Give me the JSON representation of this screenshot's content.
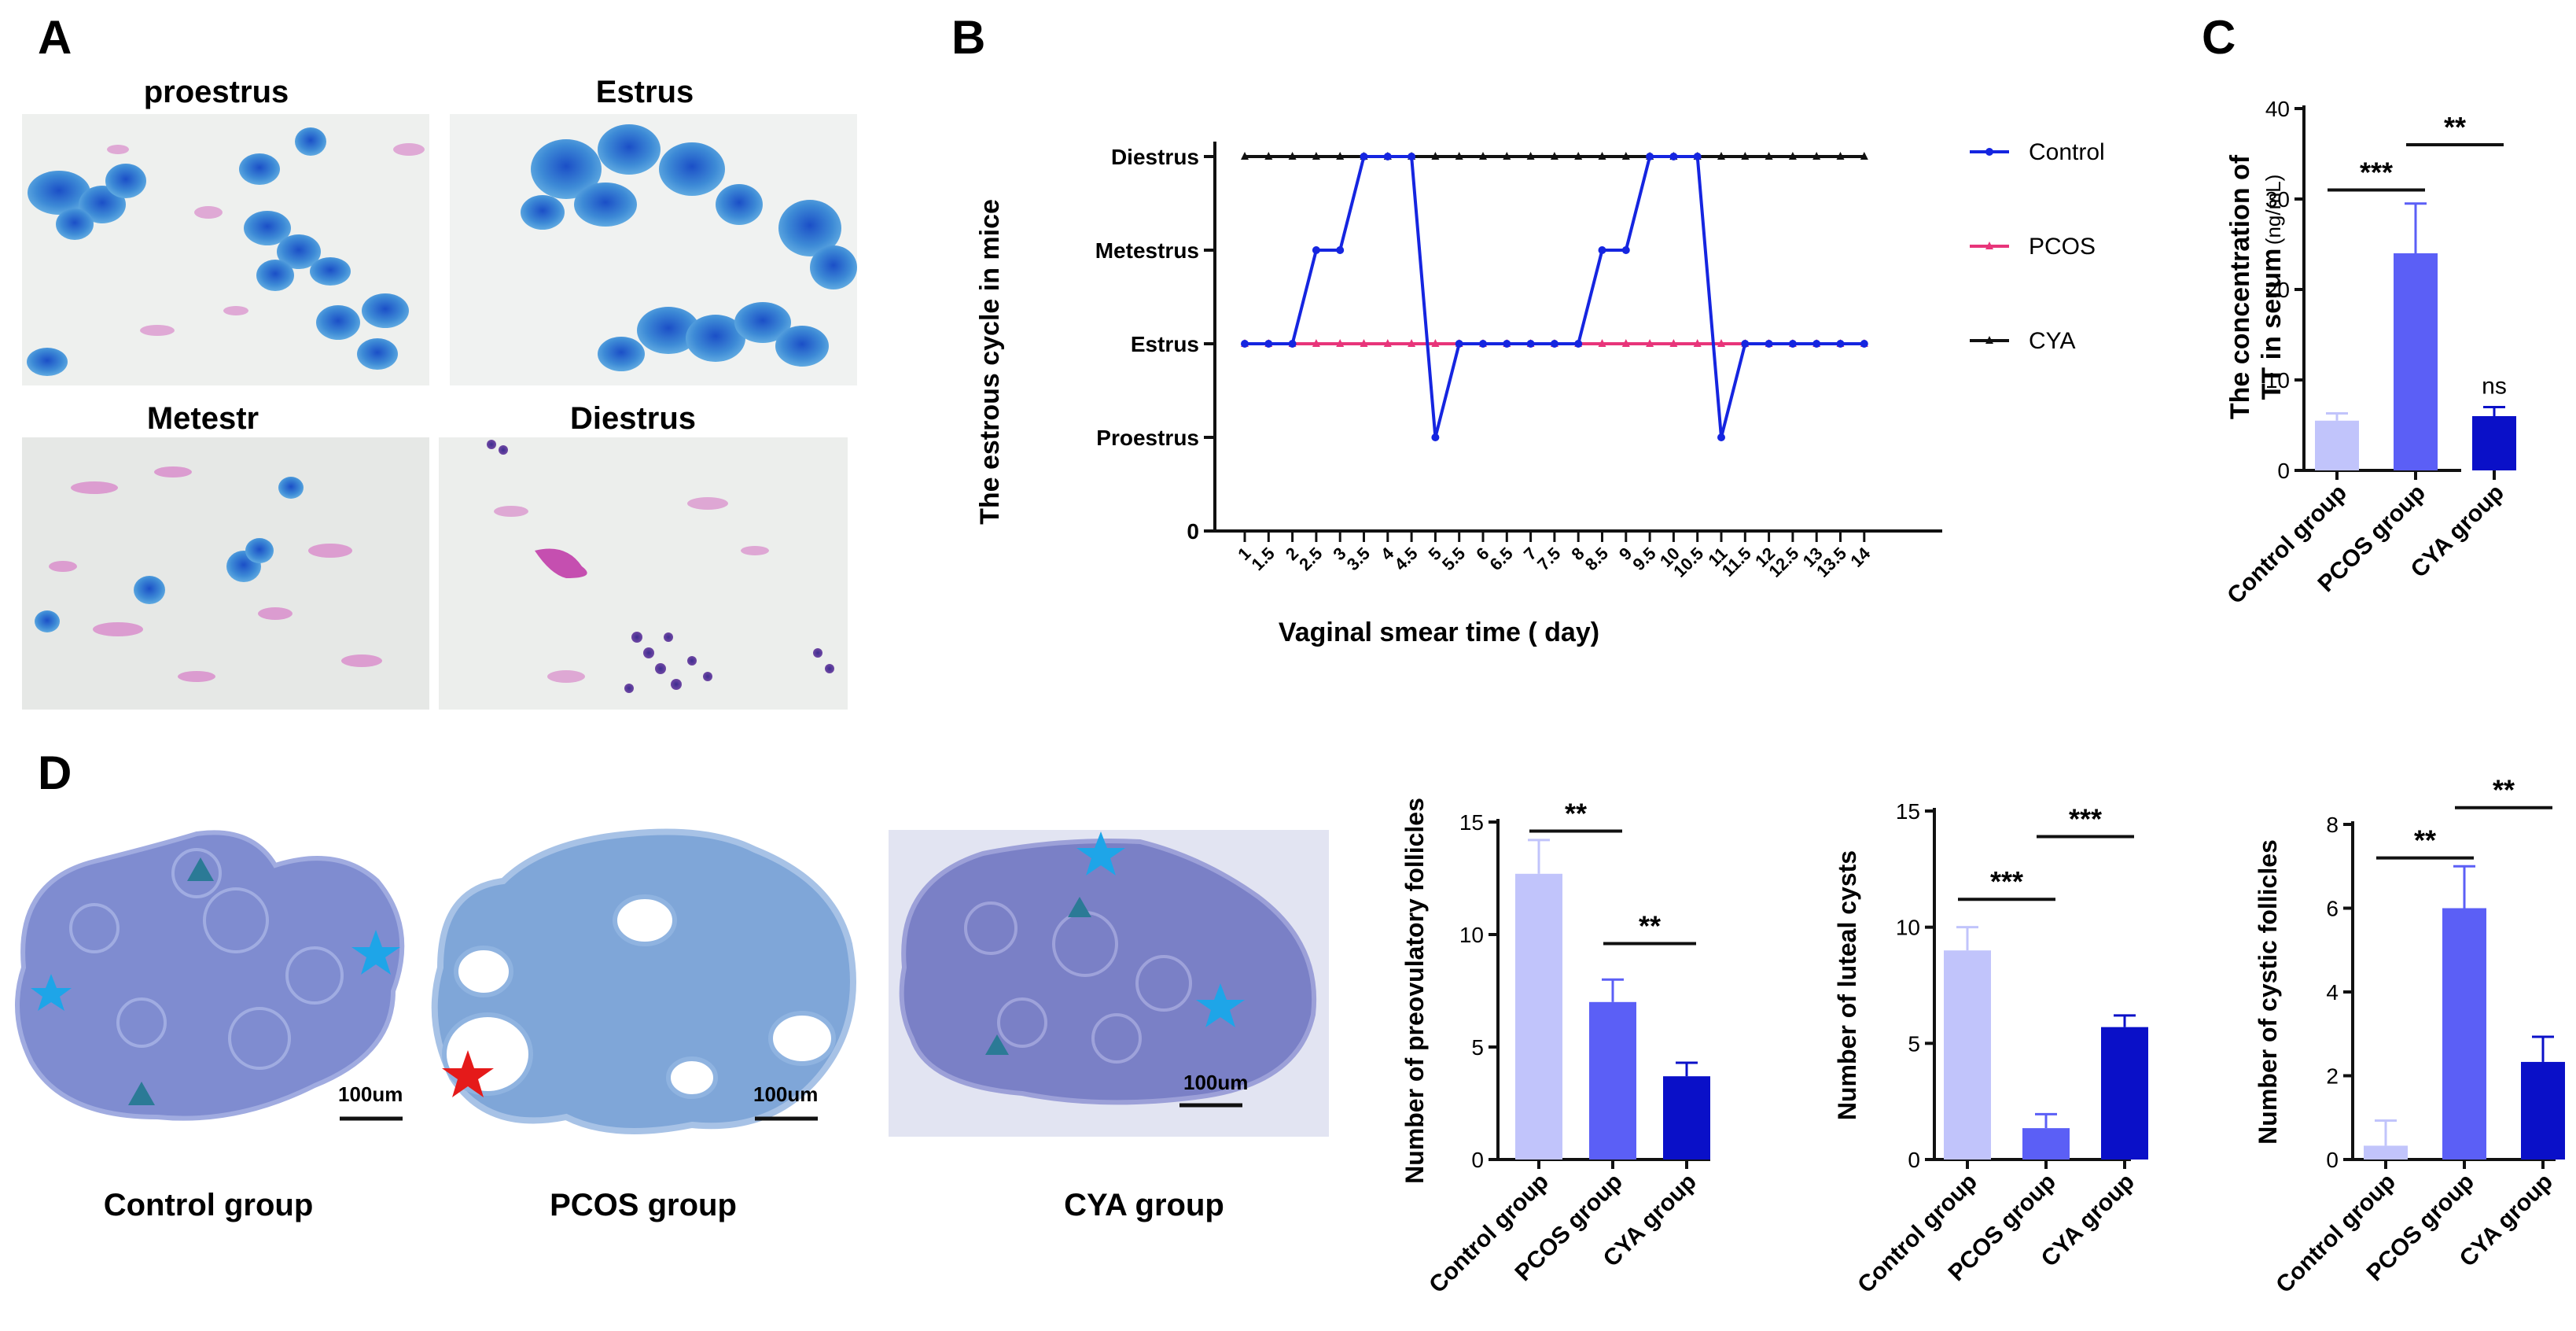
{
  "panels": {
    "A": {
      "letter": "A",
      "images": [
        {
          "label": "proestrus"
        },
        {
          "label": "Estrus"
        },
        {
          "label": "Metestr"
        },
        {
          "label": "Diestrus"
        }
      ]
    },
    "B": {
      "letter": "B"
    },
    "C": {
      "letter": "C"
    },
    "D": {
      "letter": "D",
      "images": [
        {
          "label": "Control group",
          "scale_label": "100um"
        },
        {
          "label": "PCOS group",
          "scale_label": "100um"
        },
        {
          "label": "CYA group",
          "scale_label": "100um"
        }
      ]
    }
  },
  "colors": {
    "control_bar": "#c1c4fb",
    "pcos_bar": "#5b5ff6",
    "cya_bar": "#0a10c8",
    "control_line": "#1525e0",
    "pcos_line": "#e8357a",
    "cya_line": "#111111",
    "cyan_star": "#1ea5e8",
    "red_star": "#e51a1a",
    "marker_triangle": "#2b7a96"
  },
  "chart_data": [
    {
      "id": "estrous_cycle",
      "type": "line",
      "title": "",
      "xlabel": "Vaginal smear time ( day)",
      "ylabel": "The estrous cycle in mice",
      "y_categories": [
        "0",
        "Proestrus",
        "Estrus",
        "Metestrus",
        "Diestrus"
      ],
      "x": [
        "1",
        "1.5",
        "2",
        "2.5",
        "3",
        "3.5",
        "4",
        "4.5",
        "5",
        "5.5",
        "6",
        "6.5",
        "7",
        "7.5",
        "8",
        "8.5",
        "9",
        "9.5",
        "10",
        "10.5",
        "11",
        "11.5",
        "12",
        "12.5",
        "13",
        "13.5",
        "14"
      ],
      "series": [
        {
          "name": "Control",
          "values": [
            2,
            2,
            2,
            3,
            3,
            4,
            4,
            4,
            1,
            2,
            2,
            2,
            2,
            2,
            2,
            3,
            3,
            4,
            4,
            4,
            1,
            2,
            2,
            2,
            2,
            2,
            2
          ]
        },
        {
          "name": "PCOS",
          "values": [
            2,
            2,
            2,
            2,
            2,
            2,
            2,
            2,
            2,
            2,
            2,
            2,
            2,
            2,
            2,
            2,
            2,
            2,
            2,
            2,
            2,
            2,
            2,
            2,
            2,
            2,
            2
          ]
        },
        {
          "name": "CYA",
          "values": [
            4,
            4,
            4,
            4,
            4,
            4,
            4,
            4,
            4,
            4,
            4,
            4,
            4,
            4,
            4,
            4,
            4,
            4,
            4,
            4,
            4,
            4,
            4,
            4,
            4,
            4,
            4
          ]
        }
      ]
    },
    {
      "id": "tt_serum",
      "type": "bar",
      "title": "",
      "ylabel_line1": "The concentration of",
      "ylabel_line2": "TT in serum",
      "ylabel_unit": "(ng/mL)",
      "categories": [
        "Control group",
        "PCOS group",
        "CYA group"
      ],
      "values": [
        5.5,
        24,
        6
      ],
      "errors": [
        0.8,
        5.5,
        1.0
      ],
      "ylim": [
        0,
        40
      ],
      "yticks": [
        "0",
        "10",
        "20",
        "30",
        "40"
      ],
      "annotations": [
        {
          "text": "***",
          "from": 0,
          "to": 1,
          "y": 31
        },
        {
          "text": "**",
          "from": 1,
          "to": 2,
          "y": 36
        },
        {
          "text": "ns",
          "over": 2,
          "y": 8.5
        }
      ]
    },
    {
      "id": "preovulatory",
      "type": "bar",
      "title": "",
      "ylabel": "Number of preovulatory follicles",
      "categories": [
        "Control group",
        "PCOS group",
        "CYA group"
      ],
      "values": [
        12.7,
        7.0,
        3.7
      ],
      "errors": [
        1.5,
        1.0,
        0.6
      ],
      "ylim": [
        0,
        15
      ],
      "yticks": [
        "0",
        "5",
        "10",
        "15"
      ],
      "annotations": [
        {
          "text": "**",
          "from": 0,
          "to": 1,
          "y": 14.6
        },
        {
          "text": "**",
          "from": 1,
          "to": 2,
          "y": 9.6
        }
      ]
    },
    {
      "id": "luteal_cysts",
      "type": "bar",
      "title": "",
      "ylabel": "Number of luteal cysts",
      "categories": [
        "Control group",
        "PCOS group",
        "CYA group"
      ],
      "values": [
        9.0,
        1.35,
        5.7
      ],
      "errors": [
        1.0,
        0.6,
        0.5
      ],
      "ylim": [
        0,
        15
      ],
      "yticks": [
        "0",
        "5",
        "10",
        "15"
      ],
      "annotations": [
        {
          "text": "***",
          "from": 0,
          "to": 1,
          "y": 11.2
        },
        {
          "text": "***",
          "from": 1,
          "to": 2,
          "y": 13.9
        }
      ]
    },
    {
      "id": "cystic_follicles",
      "type": "bar",
      "title": "",
      "ylabel": "Number of cystic follicles",
      "categories": [
        "Control group",
        "PCOS group",
        "CYA group"
      ],
      "values": [
        0.33,
        6.0,
        2.33
      ],
      "errors": [
        0.6,
        1.0,
        0.6
      ],
      "ylim": [
        0,
        8
      ],
      "yticks": [
        "0",
        "2",
        "4",
        "6",
        "8"
      ],
      "annotations": [
        {
          "text": "**",
          "from": 0,
          "to": 1,
          "y": 7.2
        },
        {
          "text": "**",
          "from": 1,
          "to": 2,
          "y": 8.4
        }
      ]
    }
  ]
}
